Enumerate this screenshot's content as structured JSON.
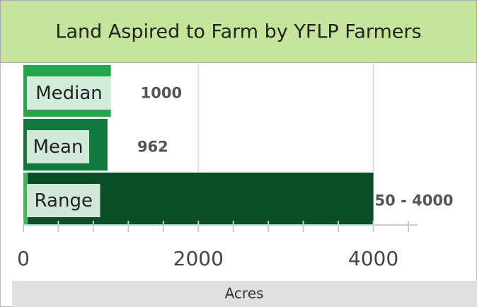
{
  "chart_data": {
    "type": "bar",
    "orientation": "horizontal",
    "title": "Land Aspired to Farm by YFLP Farmers",
    "x_label": "Acres",
    "categories": [
      "Median",
      "Mean",
      "Range"
    ],
    "values": [
      1000,
      962,
      4000
    ],
    "lows": [
      null,
      null,
      50
    ],
    "value_labels": [
      "1000",
      "962",
      "50 - 4000"
    ],
    "colors": [
      "#22a84b",
      "#0f7a3c",
      "#0b4f26"
    ],
    "low_color": "#3cba5a",
    "xlim": [
      0,
      4400
    ],
    "xticks": [
      0,
      2000,
      4000
    ],
    "xminor_ticks": [
      0,
      400,
      800,
      1200,
      1600,
      2000,
      2400,
      2800,
      3200,
      3600,
      4000,
      4400
    ],
    "grid": true
  }
}
